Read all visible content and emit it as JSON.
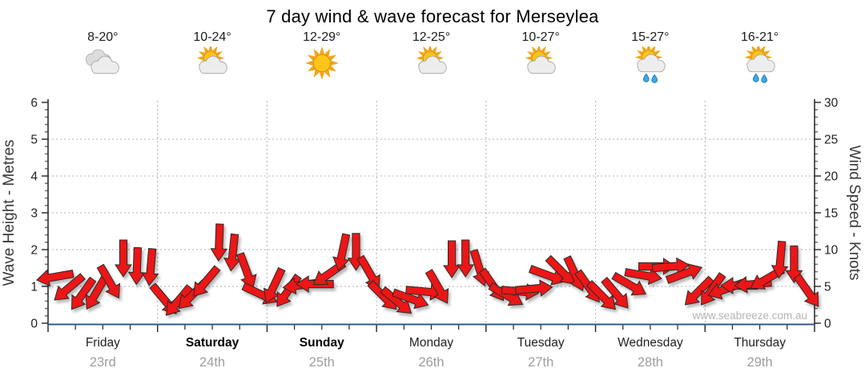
{
  "title": "7 day wind & wave forecast for Merseylea",
  "watermark": "www.seabreeze.com.au",
  "colors": {
    "arrow_fill": "#ed1414",
    "arrow_stroke": "#2b2b2b",
    "baseline_blue": "#2d5a87",
    "grid_dotted": "#b0b0b0",
    "axis_line": "#222222",
    "tick_label": "#222222",
    "axis_title": "#3a3a3a",
    "day_name": "#222222",
    "day_date": "#9e9e9e",
    "watermark_color": "#b4b4b4",
    "sun": "#ffc41a",
    "sun_rays": "#f2a51a",
    "cloud_front": "#ededed",
    "cloud_back": "#dcdcdc",
    "rain_drop": "#3fa9e0"
  },
  "chart_data": {
    "type": "wind-direction-speed-forecast",
    "title": "7 day wind & wave forecast for Merseylea",
    "subtitle": "",
    "grid": true,
    "left_axis": {
      "label": "Wave Height - Metres",
      "range": [
        0,
        6
      ],
      "ticks": [
        0,
        1,
        2,
        3,
        4,
        5,
        6
      ],
      "minor_per_major": 4
    },
    "right_axis": {
      "label": "Wind Speed - Knots",
      "range": [
        0,
        30
      ],
      "ticks": [
        0,
        5,
        10,
        15,
        20,
        25,
        30
      ],
      "minor_per_major": 4
    },
    "x_axis": {
      "slots_per_day": 8,
      "minor_ticks_per_day": 3,
      "note": "one red arrow per 3-hour step, arrow top edge = wind speed in knots, rotation = direction wind blows toward (0=N up, 90=E right)"
    },
    "legend": "none",
    "days": [
      {
        "name": "Friday",
        "date": "23rd",
        "bold": false,
        "temp": "8-20°",
        "icon": "cloudy",
        "wind_knots": [
          7.8,
          7.2,
          6.6,
          6.8,
          8.3,
          11.3,
          10.3,
          10.2
        ],
        "wind_dir_deg": [
          260,
          230,
          215,
          210,
          150,
          180,
          182,
          185
        ]
      },
      {
        "name": "Saturday",
        "date": "24th",
        "bold": true,
        "temp": "10-24°",
        "icon": "partly-cloudy",
        "wind_knots": [
          5.8,
          5.6,
          6.3,
          8.2,
          13.5,
          12.2,
          9.8,
          6.0
        ],
        "wind_dir_deg": [
          140,
          220,
          225,
          220,
          182,
          186,
          160,
          115
        ]
      },
      {
        "name": "Sunday",
        "date": "25th",
        "bold": true,
        "temp": "12-29°",
        "icon": "sunny",
        "wind_knots": [
          7.8,
          7.0,
          6.6,
          6.4,
          9.0,
          12.3,
          12.2,
          9.5
        ],
        "wind_dir_deg": [
          205,
          215,
          262,
          270,
          235,
          192,
          180,
          150
        ]
      },
      {
        "name": "Monday",
        "date": "26th",
        "bold": false,
        "temp": "12-25°",
        "icon": "partly-cloudy",
        "wind_knots": [
          6.2,
          5.4,
          5.2,
          5.6,
          7.6,
          11.2,
          11.3,
          10.2
        ],
        "wind_dir_deg": [
          135,
          130,
          110,
          95,
          150,
          180,
          180,
          163
        ]
      },
      {
        "name": "Tuesday",
        "date": "27th",
        "bold": false,
        "temp": "10-27°",
        "icon": "partly-cloudy",
        "wind_knots": [
          7.8,
          6.0,
          5.6,
          6.0,
          8.4,
          9.6,
          9.4,
          7.6
        ],
        "wind_dir_deg": [
          145,
          120,
          95,
          85,
          110,
          135,
          155,
          145
        ]
      },
      {
        "name": "Wednesday",
        "date": "28th",
        "bold": false,
        "temp": "15-27°",
        "icon": "partly-cloudy-rain",
        "wind_knots": [
          6.2,
          6.6,
          7.4,
          8.0,
          8.8,
          9.0,
          8.6,
          6.8
        ],
        "wind_dir_deg": [
          135,
          140,
          120,
          100,
          90,
          85,
          70,
          225
        ]
      },
      {
        "name": "Thursday",
        "date": "29th",
        "bold": false,
        "temp": "16-21°",
        "icon": "partly-cloudy-rain",
        "wind_knots": [
          7.2,
          6.5,
          6.2,
          6.6,
          8.2,
          11.2,
          10.5,
          7.0
        ],
        "wind_dir_deg": [
          215,
          250,
          270,
          265,
          240,
          185,
          180,
          145
        ]
      }
    ]
  }
}
